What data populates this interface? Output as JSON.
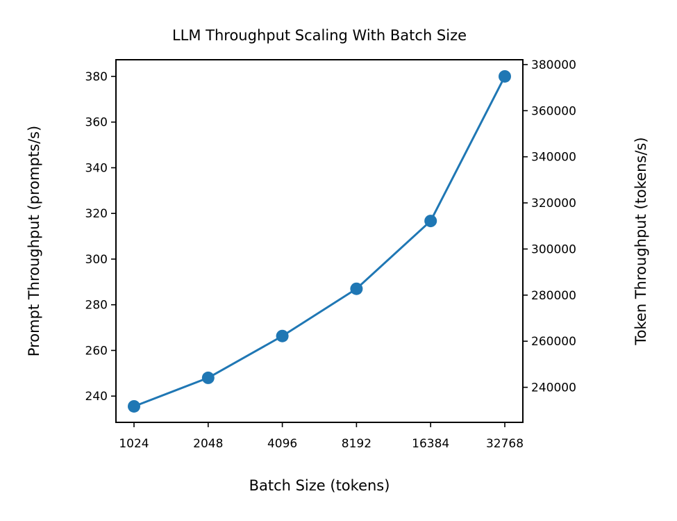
{
  "chart_data": {
    "type": "line",
    "title": "LLM Throughput Scaling With Batch Size",
    "xlabel": "Batch Size (tokens)",
    "ylabel": "Prompt Throughput (prompts/s)",
    "y2label": "Token Throughput (tokens/s)",
    "x_scale": "log2",
    "categories": [
      "1024",
      "2048",
      "4096",
      "8192",
      "16384",
      "32768"
    ],
    "x": [
      1024,
      2048,
      4096,
      8192,
      16384,
      32768
    ],
    "series": [
      {
        "values": [
          235.5,
          248,
          266.3,
          287,
          316.7,
          380
        ],
        "color": "#1f77b4",
        "marker": "circle"
      }
    ],
    "ylim": [
      228.5,
      387.3
    ],
    "yticks": [
      240,
      260,
      280,
      300,
      320,
      340,
      360,
      380
    ],
    "y2lim": [
      224800,
      382100
    ],
    "y2ticks": [
      240000,
      260000,
      280000,
      300000,
      320000,
      340000,
      360000,
      380000
    ],
    "grid": false,
    "legend": "none"
  }
}
